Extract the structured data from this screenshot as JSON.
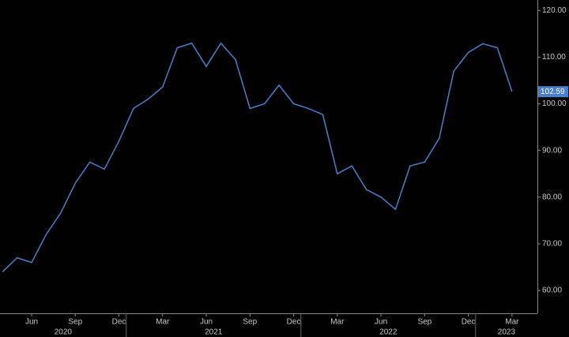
{
  "chart_data": {
    "type": "line",
    "x": [
      "2020-04",
      "2020-05",
      "2020-06",
      "2020-07",
      "2020-08",
      "2020-09",
      "2020-10",
      "2020-11",
      "2020-12",
      "2021-01",
      "2021-02",
      "2021-03",
      "2021-04",
      "2021-05",
      "2021-06",
      "2021-07",
      "2021-08",
      "2021-09",
      "2021-10",
      "2021-11",
      "2021-12",
      "2022-01",
      "2022-02",
      "2022-03",
      "2022-04",
      "2022-05",
      "2022-06",
      "2022-07",
      "2022-08",
      "2022-09",
      "2022-10",
      "2022-11",
      "2022-12",
      "2023-01",
      "2023-02",
      "2023-03"
    ],
    "series": [
      {
        "color": "#4a7fc9",
        "values": [
          64,
          67,
          66,
          72,
          76.6,
          83,
          87.5,
          86,
          92,
          99,
          101,
          103.6,
          112,
          113,
          108,
          113,
          109.5,
          99,
          100,
          104,
          100,
          99,
          97.7,
          85,
          86.7,
          81.6,
          80,
          77.4,
          86.7,
          87.5,
          92.6,
          107,
          111,
          112.9,
          112,
          102.59
        ]
      }
    ],
    "ylim": [
      55.1,
      121.4
    ],
    "yticks": [
      {
        "value": 60,
        "label": "60.00"
      },
      {
        "value": 70,
        "label": "70.00"
      },
      {
        "value": 80,
        "label": "80.00"
      },
      {
        "value": 90,
        "label": "90.00"
      },
      {
        "value": 100,
        "label": "100.00"
      },
      {
        "value": 110,
        "label": "110.00"
      },
      {
        "value": 120,
        "label": "120.00"
      }
    ],
    "xticks": [
      {
        "value": "2020-06",
        "label": "Jun"
      },
      {
        "value": "2020-09",
        "label": "Sep"
      },
      {
        "value": "2020-12",
        "label": "Dec"
      },
      {
        "value": "2021-03",
        "label": "Mar"
      },
      {
        "value": "2021-06",
        "label": "Jun"
      },
      {
        "value": "2021-09",
        "label": "Sep"
      },
      {
        "value": "2021-12",
        "label": "Dec"
      },
      {
        "value": "2022-03",
        "label": "Mar"
      },
      {
        "value": "2022-06",
        "label": "Jun"
      },
      {
        "value": "2022-09",
        "label": "Sep"
      },
      {
        "value": "2022-12",
        "label": "Dec"
      },
      {
        "value": "2023-03",
        "label": "Mar"
      }
    ],
    "years": [
      "2020",
      "2021",
      "2022",
      "2023"
    ]
  }
}
